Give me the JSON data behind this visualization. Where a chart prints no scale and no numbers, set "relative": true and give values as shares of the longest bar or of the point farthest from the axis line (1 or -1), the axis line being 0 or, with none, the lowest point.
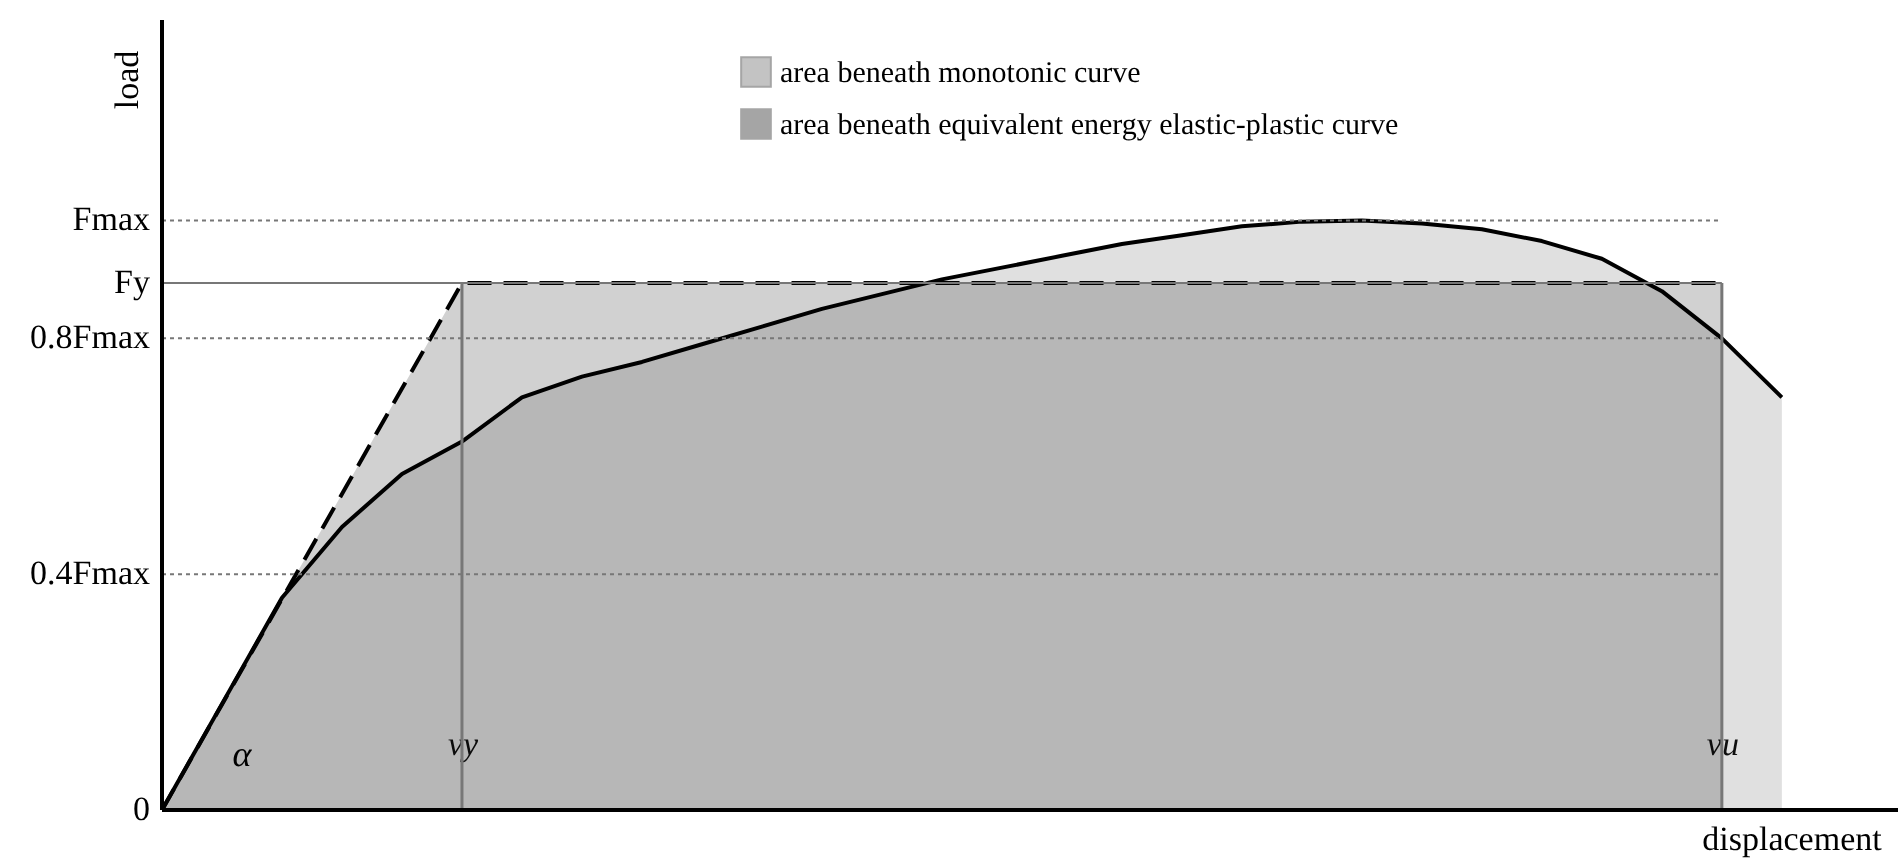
{
  "chart_data": {
    "type": "area",
    "relative": true,
    "xlabel": "displacement",
    "ylabel": "load",
    "legend": "top",
    "grid": false,
    "categories": [
      null,
      null,
      null,
      null,
      null,
      "vy",
      null,
      null,
      null,
      null,
      null,
      null,
      null,
      null,
      null,
      null,
      null,
      null,
      null,
      null,
      null,
      null,
      null,
      null,
      null,
      null,
      "vu",
      null
    ],
    "series": [
      {
        "name": "area beneath monotonic curve",
        "color": "#555555",
        "line_style": "solid",
        "values": [
          0,
          0.18,
          0.36,
          0.48,
          0.57,
          0.625,
          0.7,
          0.735,
          0.76,
          0.79,
          0.82,
          0.85,
          0.875,
          0.9,
          0.92,
          0.94,
          0.96,
          0.975,
          0.99,
          0.998,
          1.0,
          0.995,
          0.985,
          0.965,
          0.935,
          0.88,
          0.8,
          0.7
        ]
      },
      {
        "name": "area beneath equivalent energy elastic-plastic curve",
        "color": "#000000",
        "line_style": "dashed",
        "values": [
          0,
          0.179,
          0.358,
          0.536,
          0.715,
          0.894,
          0.894,
          0.894,
          0.894,
          0.894,
          0.894,
          0.894,
          0.894,
          0.894,
          0.894,
          0.894,
          0.894,
          0.894,
          0.894,
          0.894,
          0.894,
          0.894,
          0.894,
          0.894,
          0.894,
          0.894,
          0.894,
          null
        ]
      }
    ],
    "ref_lines": [
      {
        "axis": "y",
        "value": 1.0,
        "label": "Fmax",
        "line_style": "dotted",
        "color": "#777777"
      },
      {
        "axis": "y",
        "value": 0.894,
        "label": "Fy",
        "line_style": "solid",
        "color": "#777777"
      },
      {
        "axis": "y",
        "value": 0.8,
        "label": "0.8Fmax",
        "line_style": "dotted",
        "color": "#777777"
      },
      {
        "axis": "y",
        "value": 0.4,
        "label": "0.4Fmax",
        "line_style": "dotted",
        "color": "#777777"
      },
      {
        "axis": "x",
        "value": "vy",
        "line_style": "solid",
        "color": "#777777"
      },
      {
        "axis": "x",
        "value": "vu",
        "line_style": "solid",
        "color": "#777777"
      }
    ],
    "annotations": [
      "0",
      "α"
    ]
  }
}
